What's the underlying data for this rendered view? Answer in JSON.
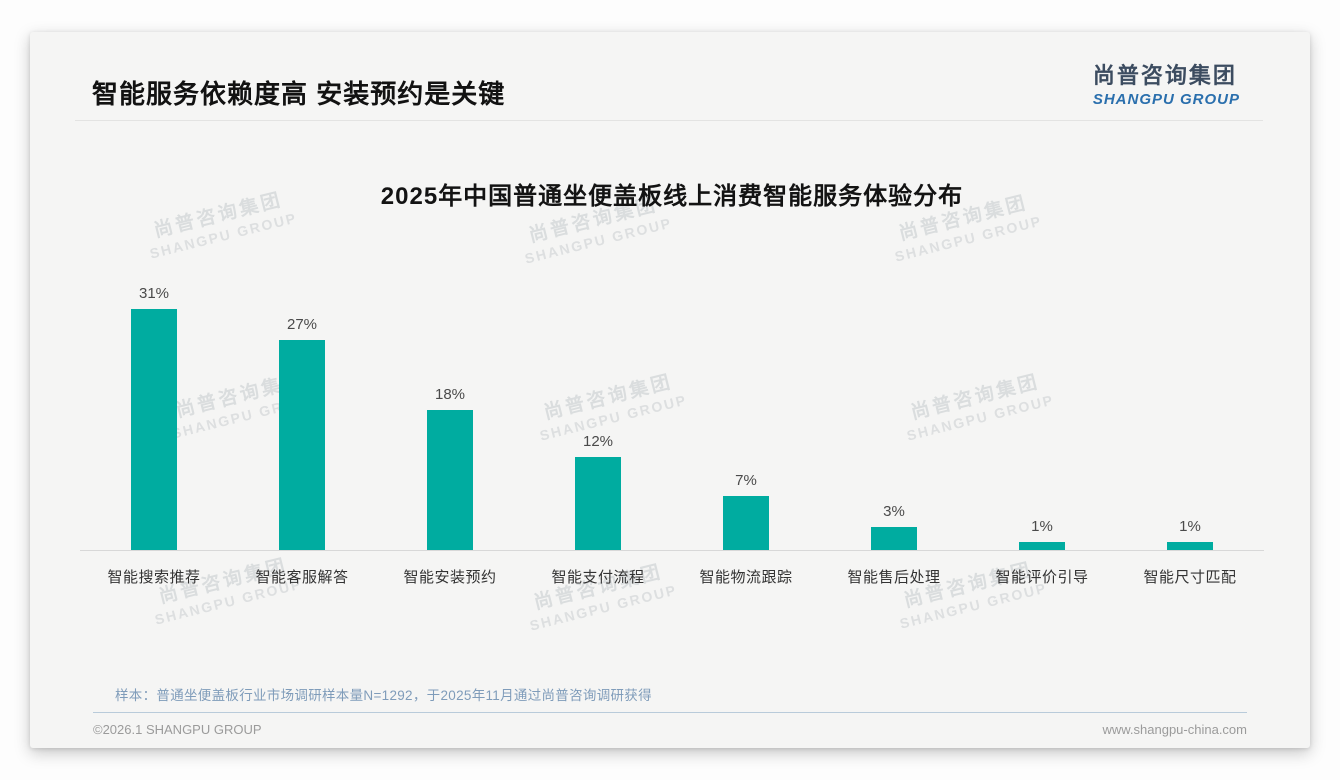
{
  "page": {
    "title": "智能服务依赖度高 安装预约是关键"
  },
  "logo": {
    "zh": "尚普咨询集团",
    "en": "SHANGPU GROUP"
  },
  "watermark": {
    "zh": "尚普咨询集团",
    "en": "SHANGPU GROUP"
  },
  "chart_data": {
    "type": "bar",
    "title": "2025年中国普通坐便盖板线上消费智能服务体验分布",
    "categories": [
      "智能搜索推荐",
      "智能客服解答",
      "智能安装预约",
      "智能支付流程",
      "智能物流跟踪",
      "智能售后处理",
      "智能评价引导",
      "智能尺寸匹配"
    ],
    "values": [
      31,
      27,
      18,
      12,
      7,
      3,
      1,
      1
    ],
    "labels": [
      "31%",
      "27%",
      "18%",
      "12%",
      "7%",
      "3%",
      "1%",
      "1%"
    ],
    "bar_color": "#00aca0",
    "xlabel": "",
    "ylabel": "",
    "ylim": [
      0,
      33
    ],
    "grid": false,
    "legend": false
  },
  "footnote": "样本：普通坐便盖板行业市场调研样本量N=1292，于2025年11月通过尚普咨询调研获得",
  "footer": {
    "left": "©2026.1 SHANGPU GROUP",
    "right": "www.shangpu-china.com"
  }
}
